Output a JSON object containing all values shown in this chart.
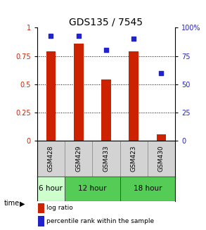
{
  "title": "GDS135 / 7545",
  "samples": [
    "GSM428",
    "GSM429",
    "GSM433",
    "GSM423",
    "GSM430"
  ],
  "log_ratio": [
    0.79,
    0.86,
    0.54,
    0.79,
    0.06
  ],
  "percentile_rank": [
    0.93,
    0.93,
    0.8,
    0.9,
    0.6
  ],
  "time_spans": [
    {
      "label": "6 hour",
      "start": 0,
      "end": 1,
      "color": "#ccffcc"
    },
    {
      "label": "12 hour",
      "start": 1,
      "end": 3,
      "color": "#55cc55"
    },
    {
      "label": "18 hour",
      "start": 3,
      "end": 5,
      "color": "#55cc55"
    }
  ],
  "bar_color": "#cc2200",
  "dot_color": "#2222cc",
  "left_axis_color": "#cc2200",
  "right_axis_color": "#2222cc",
  "ylim": [
    0,
    1
  ],
  "left_yticks": [
    0,
    0.25,
    0.5,
    0.75,
    1.0
  ],
  "left_yticklabels": [
    "0",
    "0.25",
    "0.5",
    "0.75",
    "1"
  ],
  "right_yticks": [
    0,
    0.25,
    0.5,
    0.75,
    1.0
  ],
  "right_yticklabels": [
    "0",
    "25",
    "50",
    "75",
    "100%"
  ],
  "legend_bar_label": "log ratio",
  "legend_dot_label": "percentile rank within the sample",
  "time_label": "time",
  "background_color": "#ffffff",
  "sample_bg_color": "#d3d3d3",
  "grid_levels": [
    0.25,
    0.5,
    0.75
  ]
}
